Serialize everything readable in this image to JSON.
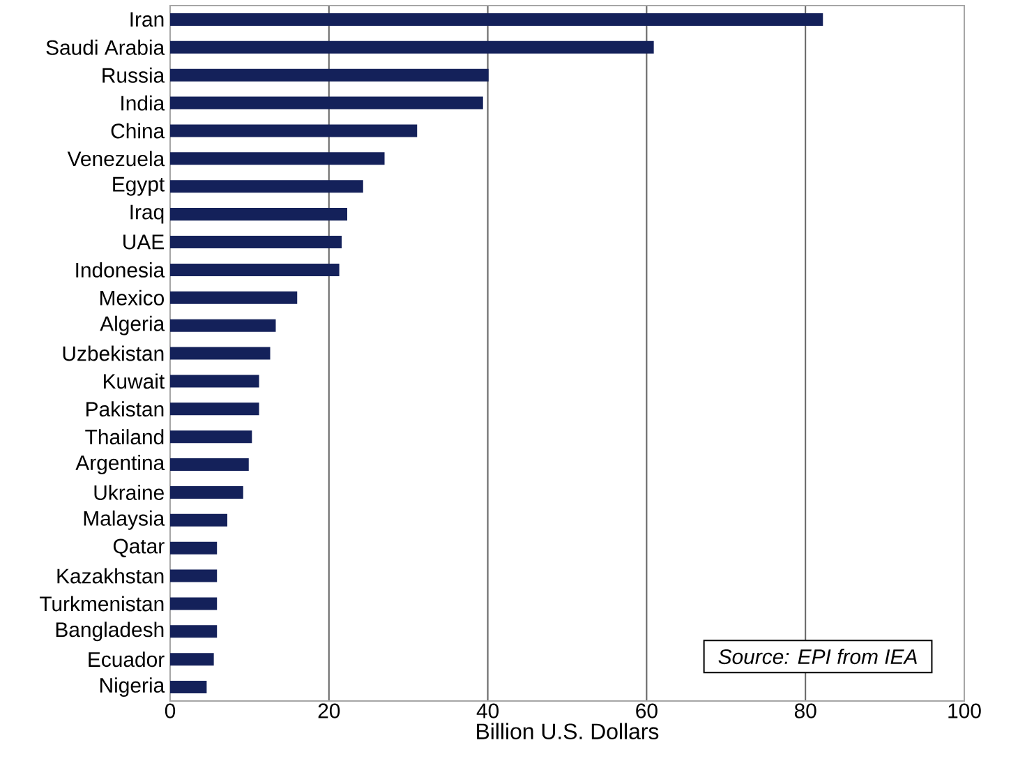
{
  "chart_data": {
    "type": "bar",
    "orientation": "horizontal",
    "categories": [
      "Iran",
      "Saudi Arabia",
      "Russia",
      "India",
      "China",
      "Venezuela",
      "Egypt",
      "Iraq",
      "UAE",
      "Indonesia",
      "Mexico",
      "Algeria",
      "Uzbekistan",
      "Kuwait",
      "Pakistan",
      "Thailand",
      "Argentina",
      "Ukraine",
      "Malaysia",
      "Qatar",
      "Kazakhstan",
      "Turkmenistan",
      "Bangladesh",
      "Ecuador",
      "Nigeria"
    ],
    "values": [
      82.2,
      60.9,
      40.1,
      39.4,
      31.1,
      27.0,
      24.3,
      22.3,
      21.6,
      21.3,
      16.0,
      13.3,
      12.6,
      11.2,
      11.2,
      10.3,
      9.9,
      9.2,
      7.2,
      5.9,
      5.9,
      5.9,
      5.9,
      5.5,
      4.6
    ],
    "color": "#14215a",
    "xlim": [
      0,
      100
    ],
    "xticks": [
      0,
      20,
      40,
      60,
      80,
      100
    ],
    "xlabel": "Billion U.S. Dollars",
    "grid": "x",
    "annotations": [
      "*Source: EPI from IEA*"
    ]
  }
}
